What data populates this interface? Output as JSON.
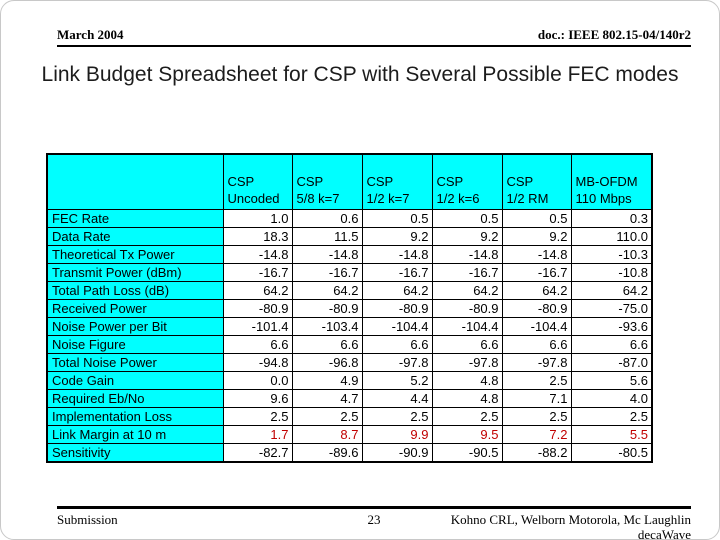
{
  "header": {
    "date": "March 2004",
    "doc": "doc.: IEEE 802.15-04/140r2"
  },
  "title": "Link Budget Spreadsheet for CSP with Several Possible FEC modes",
  "table": {
    "columns": [
      {
        "line1": "CSP",
        "line2": "Uncoded"
      },
      {
        "line1": "CSP",
        "line2": "5/8 k=7"
      },
      {
        "line1": "CSP",
        "line2": "1/2 k=7"
      },
      {
        "line1": "CSP",
        "line2": "1/2 k=6"
      },
      {
        "line1": "CSP",
        "line2": "1/2 RM"
      },
      {
        "line1": "MB-OFDM",
        "line2": "110 Mbps"
      }
    ],
    "rows": [
      {
        "label": "FEC Rate",
        "values": [
          "1.0",
          "0.6",
          "0.5",
          "0.5",
          "0.5",
          "0.3"
        ],
        "red": false
      },
      {
        "label": "Data Rate",
        "values": [
          "18.3",
          "11.5",
          "9.2",
          "9.2",
          "9.2",
          "110.0"
        ],
        "red": false
      },
      {
        "label": "Theoretical Tx Power",
        "values": [
          "-14.8",
          "-14.8",
          "-14.8",
          "-14.8",
          "-14.8",
          "-10.3"
        ],
        "red": false
      },
      {
        "label": "Transmit Power (dBm)",
        "values": [
          "-16.7",
          "-16.7",
          "-16.7",
          "-16.7",
          "-16.7",
          "-10.8"
        ],
        "red": false
      },
      {
        "label": "Total Path Loss (dB)",
        "values": [
          "64.2",
          "64.2",
          "64.2",
          "64.2",
          "64.2",
          "64.2"
        ],
        "red": false
      },
      {
        "label": "Received Power",
        "values": [
          "-80.9",
          "-80.9",
          "-80.9",
          "-80.9",
          "-80.9",
          "-75.0"
        ],
        "red": false
      },
      {
        "label": "Noise Power per Bit",
        "values": [
          "-101.4",
          "-103.4",
          "-104.4",
          "-104.4",
          "-104.4",
          "-93.6"
        ],
        "red": false
      },
      {
        "label": "Noise Figure",
        "values": [
          "6.6",
          "6.6",
          "6.6",
          "6.6",
          "6.6",
          "6.6"
        ],
        "red": false
      },
      {
        "label": "Total Noise Power",
        "values": [
          "-94.8",
          "-96.8",
          "-97.8",
          "-97.8",
          "-97.8",
          "-87.0"
        ],
        "red": false
      },
      {
        "label": "Code Gain",
        "values": [
          "0.0",
          "4.9",
          "5.2",
          "4.8",
          "2.5",
          "5.6"
        ],
        "red": false
      },
      {
        "label": "Required Eb/No",
        "values": [
          "9.6",
          "4.7",
          "4.4",
          "4.8",
          "7.1",
          "4.0"
        ],
        "red": false
      },
      {
        "label": "Implementation Loss",
        "values": [
          "2.5",
          "2.5",
          "2.5",
          "2.5",
          "2.5",
          "2.5"
        ],
        "red": false
      },
      {
        "label": "Link Margin at 10 m",
        "values": [
          "1.7",
          "8.7",
          "9.9",
          "9.5",
          "7.2",
          "5.5"
        ],
        "red": true
      },
      {
        "label": "Sensitivity",
        "values": [
          "-82.7",
          "-89.6",
          "-90.9",
          "-90.5",
          "-88.2",
          "-80.5"
        ],
        "red": false
      }
    ]
  },
  "footer": {
    "left": "Submission",
    "page": "23",
    "right_line1": "Kohno CRL, Welborn Motorola, Mc Laughlin",
    "right_line2": "decaWave"
  },
  "colors": {
    "cell_cyan": "#00ffff",
    "link_margin_red": "#c00000",
    "border_black": "#000000"
  }
}
